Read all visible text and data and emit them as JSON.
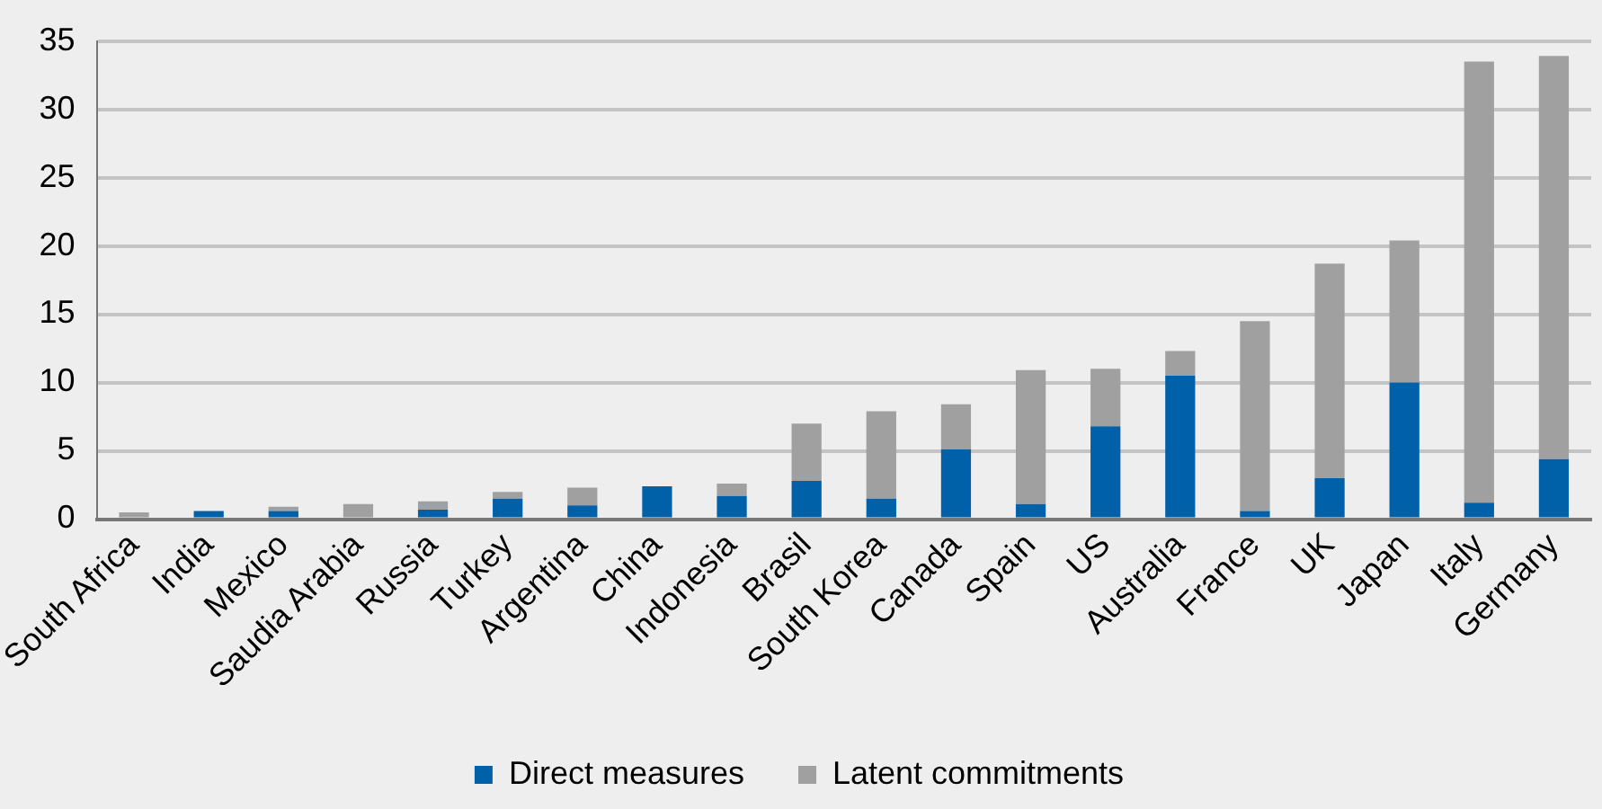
{
  "chart_data": {
    "type": "bar",
    "stacked": true,
    "categories": [
      "South Africa",
      "India",
      "Mexico",
      "Saudia Arabia",
      "Russia",
      "Turkey",
      "Argentina",
      "China",
      "Indonesia",
      "Brasil",
      "South Korea",
      "Canada",
      "Spain",
      "US",
      "Australia",
      "France",
      "UK",
      "Japan",
      "Italy",
      "Germany"
    ],
    "series": [
      {
        "name": "Direct measures",
        "color": "#0061a8",
        "values": [
          0,
          0.6,
          0.6,
          0,
          0.7,
          1.5,
          1.0,
          2.4,
          1.7,
          2.8,
          1.5,
          5.1,
          1.1,
          6.8,
          10.5,
          0.6,
          3.0,
          10.0,
          1.2,
          4.4
        ]
      },
      {
        "name": "Latent commitments",
        "color": "#a0a0a0",
        "values": [
          0.5,
          0,
          0.3,
          1.1,
          0.6,
          0.5,
          1.3,
          0,
          0.9,
          4.2,
          6.4,
          3.3,
          9.8,
          4.2,
          1.8,
          13.9,
          15.7,
          10.4,
          32.3,
          29.5
        ]
      }
    ],
    "ylim": [
      0,
      35
    ],
    "yticks": [
      0,
      5,
      10,
      15,
      20,
      25,
      30,
      35
    ],
    "grid": "y",
    "legend": "bottom"
  }
}
